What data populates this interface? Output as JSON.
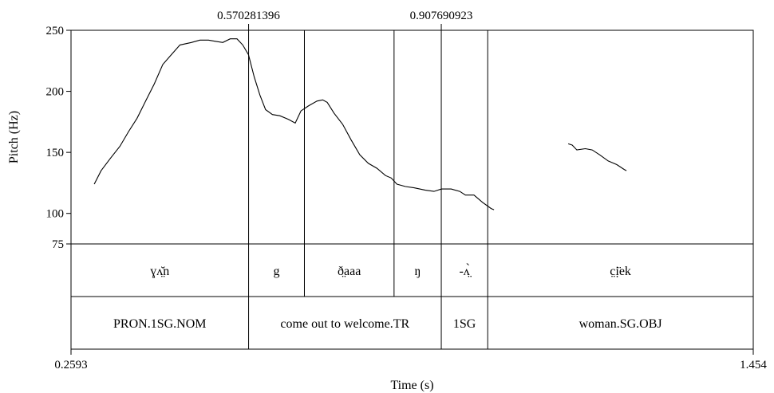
{
  "chart_data": {
    "type": "line",
    "xlabel": "Time (s)",
    "ylabel": "Pitch (Hz)",
    "xlim": [
      0.2593,
      1.454
    ],
    "ylim": [
      75,
      250
    ],
    "x_tick_labels": [
      "0.2593",
      "1.454"
    ],
    "y_ticks": [
      75,
      100,
      150,
      200,
      250
    ],
    "y_tick_labels": [
      "75",
      "100",
      "150",
      "200",
      "250"
    ],
    "top_markers": [
      {
        "label": "0.570281396",
        "value": 0.570281396
      },
      {
        "label": "0.907690923",
        "value": 0.907690923
      }
    ],
    "series": [
      {
        "points": [
          [
            0.3,
            124
          ],
          [
            0.312,
            135
          ],
          [
            0.328,
            145
          ],
          [
            0.345,
            155
          ],
          [
            0.36,
            167
          ],
          [
            0.375,
            178
          ],
          [
            0.39,
            192
          ],
          [
            0.405,
            206
          ],
          [
            0.42,
            222
          ],
          [
            0.435,
            230
          ],
          [
            0.45,
            238
          ],
          [
            0.47,
            240
          ],
          [
            0.485,
            242
          ],
          [
            0.5,
            242
          ],
          [
            0.512,
            241
          ],
          [
            0.525,
            240
          ],
          [
            0.538,
            243
          ],
          [
            0.55,
            243
          ],
          [
            0.56,
            238
          ],
          [
            0.57,
            230
          ],
          [
            0.58,
            212
          ],
          [
            0.59,
            197
          ],
          [
            0.6,
            185
          ],
          [
            0.612,
            181
          ],
          [
            0.625,
            180
          ],
          [
            0.64,
            177
          ],
          [
            0.652,
            174
          ],
          [
            0.662,
            184
          ],
          [
            0.675,
            188
          ],
          [
            0.69,
            192
          ],
          [
            0.7,
            193
          ],
          [
            0.708,
            191
          ],
          [
            0.72,
            182
          ],
          [
            0.735,
            173
          ],
          [
            0.75,
            160
          ],
          [
            0.765,
            148
          ],
          [
            0.78,
            141
          ],
          [
            0.795,
            137
          ],
          [
            0.81,
            131
          ],
          [
            0.82,
            129
          ],
          [
            0.83,
            124
          ],
          [
            0.845,
            122
          ],
          [
            0.86,
            121
          ],
          [
            0.88,
            119
          ],
          [
            0.895,
            118
          ],
          [
            0.908,
            120
          ],
          [
            0.925,
            120
          ],
          [
            0.94,
            118
          ],
          [
            0.95,
            115
          ],
          [
            0.965,
            115
          ],
          [
            0.98,
            109
          ],
          [
            0.995,
            104
          ],
          [
            1.0,
            103
          ]
        ]
      },
      {
        "points": [
          [
            1.13,
            157
          ],
          [
            1.137,
            156
          ],
          [
            1.145,
            152
          ],
          [
            1.16,
            153
          ],
          [
            1.172,
            152
          ],
          [
            1.185,
            148
          ],
          [
            1.2,
            143
          ],
          [
            1.215,
            140
          ],
          [
            1.228,
            136
          ],
          [
            1.232,
            135
          ]
        ]
      }
    ],
    "annotation_tiers": [
      {
        "name": "",
        "intervals": [
          {
            "text": "ɣʌ̤̆n",
            "start": 0.2593,
            "end": 0.570281396
          },
          {
            "text": "g",
            "start": 0.570281396,
            "end": 0.668
          },
          {
            "text": "ð̤aaa",
            "start": 0.668,
            "end": 0.825
          },
          {
            "text": "ŋ",
            "start": 0.825,
            "end": 0.907690923
          },
          {
            "text": "-ʌ̤̀",
            "start": 0.907690923,
            "end": 0.989
          },
          {
            "text": "c̤ị̈ek",
            "start": 0.989,
            "end": 1.454
          }
        ]
      },
      {
        "name": "",
        "intervals": [
          {
            "text": "PRON.1SG.NOM",
            "start": 0.2593,
            "end": 0.570281396
          },
          {
            "text": "come out to welcome.TR",
            "start": 0.570281396,
            "end": 0.907690923
          },
          {
            "text": "1SG",
            "start": 0.907690923,
            "end": 0.989
          },
          {
            "text": "woman.SG.OBJ",
            "start": 0.989,
            "end": 1.454
          }
        ]
      }
    ]
  }
}
